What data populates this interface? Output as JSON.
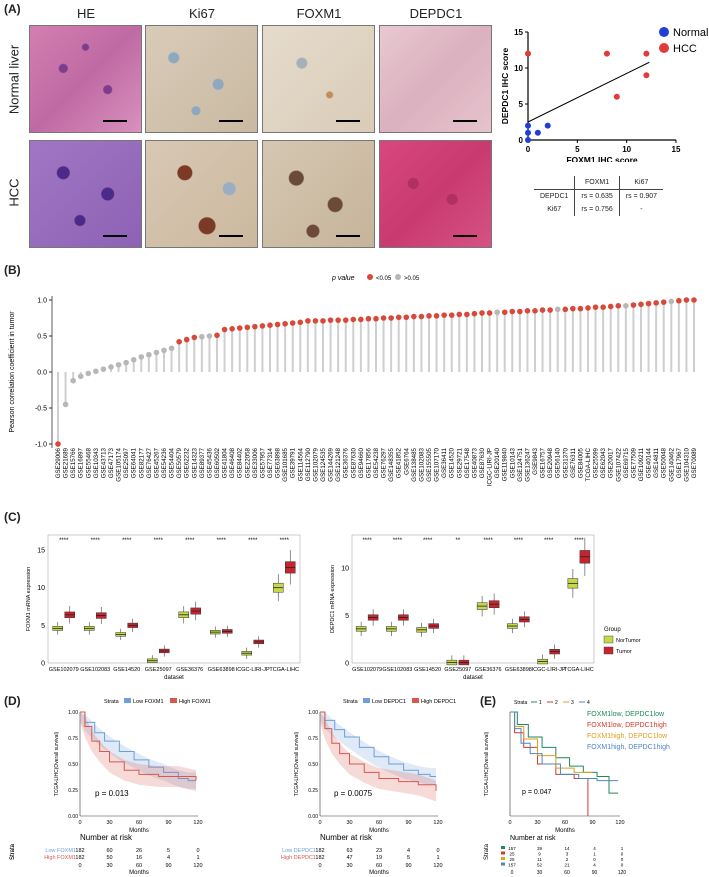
{
  "panels": {
    "A": "(A)",
    "B": "(B)",
    "C": "(C)",
    "D": "(D)",
    "E": "(E)"
  },
  "panelA": {
    "columns": [
      "HE",
      "Ki67",
      "FOXM1",
      "DEPDC1"
    ],
    "rows": [
      "Normal liver",
      "HCC"
    ],
    "scatter": {
      "xlabel": "FOXM1 IHC score",
      "ylabel": "DEPDC1 IHC score",
      "xticks": [
        "0",
        "5",
        "10",
        "15"
      ],
      "yticks": [
        "0",
        "5",
        "10",
        "15"
      ],
      "legend": [
        {
          "name": "Normal",
          "color": "#1f3fd6"
        },
        {
          "name": "HCC",
          "color": "#e23a3a"
        }
      ]
    },
    "table": {
      "header": [
        "",
        "FOXM1",
        "Ki67"
      ],
      "rows": [
        [
          "DEPDC1",
          "rs = 0.635",
          "rs = 0.907"
        ],
        [
          "Ki67",
          "rs = 0.756",
          "-"
        ]
      ]
    }
  },
  "panelB": {
    "ylabel": "Pearson correlation coefficient in tumor",
    "legend_title": "p value",
    "legend_sig": "<0.05",
    "legend_ns": ">0.05",
    "yticks": [
      "-1.0",
      "-0.5",
      "0.0",
      "0.5",
      "1.0"
    ],
    "colors": {
      "sig": "#d9493a",
      "ns": "#b7b7b7"
    },
    "datasets": [
      "GSE29006",
      "GSE21689",
      "GSE15766",
      "GSE16897",
      "GSE55468",
      "GSE10343",
      "GSE43713",
      "GSE47173",
      "GSE105174",
      "GSE25097",
      "GSE64041",
      "GSE82177",
      "GSE76427",
      "GSE45267",
      "GSE54236",
      "GSE54404",
      "GSE50579",
      "GSE62232",
      "GSE14323",
      "GSE89377",
      "GSE45436",
      "GSE60502",
      "GSE41804",
      "GSE46408",
      "GSE84402",
      "GSE22058",
      "GSE33006",
      "GSE57957",
      "GSE77314",
      "GSE63898",
      "GSE101685",
      "GSE39791",
      "GSE114564",
      "GSE112790",
      "GSE102079",
      "GSE124535",
      "GSE144269",
      "GSE121248",
      "GSE36376",
      "GSE87630",
      "GSE94660",
      "GSE17856",
      "GSE54238",
      "GSE76297",
      "GSE148355",
      "GSE41852",
      "GSE6764",
      "GSE138485",
      "GSE102083",
      "GSE155505",
      "GSE107170",
      "GSE36411",
      "GSE14520",
      "GSE29721",
      "GSE17548",
      "GSE40873",
      "GSE87630",
      "ICGC-LIRI-JP",
      "GSE20140",
      "GSE119840",
      "GSE10143",
      "GSE124751",
      "GSE136247",
      "GSE9843",
      "GSE16757",
      "GSE20948",
      "GSE56140",
      "GSE31370",
      "GSE76311",
      "GSE84005",
      "TCGA-LIHC",
      "GSE25599",
      "GSE62043",
      "GSE20017",
      "GSE107422",
      "GSE69715",
      "GSE77509",
      "GSE109211",
      "GSE40144",
      "GSE14811",
      "GSE50048",
      "GSE140462",
      "GSE17967",
      "GSE104310",
      "GSE70089"
    ],
    "values": [
      -1.0,
      -0.45,
      -0.12,
      -0.06,
      -0.02,
      0.01,
      0.04,
      0.07,
      0.1,
      0.13,
      0.17,
      0.21,
      0.24,
      0.27,
      0.3,
      0.33,
      0.42,
      0.45,
      0.48,
      0.49,
      0.5,
      0.51,
      0.59,
      0.6,
      0.61,
      0.62,
      0.63,
      0.64,
      0.65,
      0.66,
      0.67,
      0.68,
      0.69,
      0.71,
      0.71,
      0.71,
      0.72,
      0.72,
      0.72,
      0.73,
      0.73,
      0.74,
      0.74,
      0.75,
      0.75,
      0.76,
      0.76,
      0.77,
      0.77,
      0.78,
      0.78,
      0.79,
      0.79,
      0.8,
      0.8,
      0.81,
      0.82,
      0.82,
      0.83,
      0.83,
      0.84,
      0.84,
      0.85,
      0.85,
      0.86,
      0.86,
      0.87,
      0.87,
      0.88,
      0.88,
      0.89,
      0.9,
      0.9,
      0.91,
      0.92,
      0.92,
      0.93,
      0.94,
      0.95,
      0.96,
      0.97,
      0.98,
      0.99,
      1.0,
      1.0
    ],
    "significant": [
      true,
      false,
      false,
      false,
      false,
      false,
      false,
      false,
      false,
      false,
      false,
      false,
      false,
      false,
      false,
      false,
      true,
      true,
      true,
      false,
      false,
      true,
      true,
      true,
      true,
      true,
      true,
      true,
      true,
      true,
      true,
      true,
      true,
      true,
      true,
      true,
      true,
      true,
      true,
      true,
      true,
      true,
      true,
      true,
      true,
      true,
      true,
      true,
      true,
      true,
      true,
      true,
      true,
      true,
      true,
      true,
      true,
      true,
      false,
      true,
      true,
      true,
      true,
      true,
      true,
      true,
      false,
      true,
      true,
      true,
      true,
      true,
      true,
      true,
      true,
      false,
      true,
      true,
      true,
      true,
      true,
      false,
      true,
      true,
      true
    ]
  },
  "panelC": {
    "left_ylabel": "FOXM1 mRNA expression",
    "right_ylabel": "DEPDC1 mRNA expression",
    "xlabel": "dataset",
    "categories": [
      "GSE102079",
      "GSE102083",
      "GSE14520",
      "GSE25097",
      "GSE36376",
      "GSE63898",
      "ICGC-LIRI-JP",
      "TCGA-LIHC"
    ],
    "left_sig": [
      "****",
      "****",
      "****",
      "****",
      "****",
      "****",
      "****",
      "****"
    ],
    "right_sig": [
      "****",
      "****",
      "****",
      "**",
      "****",
      "****",
      "****",
      "****"
    ],
    "left_yticks": [
      "0",
      "5",
      "10",
      "15"
    ],
    "right_yticks": [
      "0",
      "5",
      "10"
    ],
    "legend_title": "Group",
    "groups": [
      {
        "name": "NorTumor",
        "color": "#c6d84a"
      },
      {
        "name": "Tumor",
        "color": "#c8242f"
      }
    ],
    "left_normal": [
      4.6,
      4.6,
      3.8,
      0.3,
      6.4,
      4.1,
      1.3,
      10.0
    ],
    "left_tumor": [
      6.4,
      6.3,
      5.0,
      1.6,
      6.9,
      4.2,
      2.8,
      12.7
    ],
    "right_normal": [
      3.6,
      3.6,
      3.5,
      0.05,
      6.0,
      3.9,
      0.15,
      8.4
    ],
    "right_tumor": [
      4.8,
      4.8,
      3.9,
      0.05,
      6.2,
      4.6,
      1.2,
      11.2
    ]
  },
  "panelD": [
    {
      "strata_label": "Strata",
      "low": "Low FOXM1",
      "high": "High FOXM1",
      "p": "p = 0.013",
      "ylabel": "TCGA-LIHC(Overall survival)",
      "xlabel": "Months",
      "risk_title": "Number at risk",
      "risk_rows": [
        [
          "Low FOXM1",
          "182",
          "60",
          "26",
          "5",
          "0"
        ],
        [
          "High FOXM1",
          "182",
          "50",
          "16",
          "4",
          "1"
        ]
      ],
      "xticks": [
        "0",
        "30",
        "60",
        "90",
        "120"
      ],
      "yticks": [
        "0.00",
        "0.25",
        "0.50",
        "0.75",
        "1.00"
      ]
    },
    {
      "strata_label": "Strata",
      "low": "Low DEPDC1",
      "high": "High DEPDC1",
      "p": "p = 0.0075",
      "ylabel": "TCGA-LIHC(Overall survival)",
      "xlabel": "Months",
      "risk_title": "Number at risk",
      "risk_rows": [
        [
          "Low DEPDC1",
          "182",
          "63",
          "23",
          "4",
          "0"
        ],
        [
          "High DEPDC1",
          "182",
          "47",
          "19",
          "5",
          "1"
        ]
      ],
      "xticks": [
        "0",
        "30",
        "60",
        "90",
        "120"
      ],
      "yticks": [
        "0.00",
        "0.25",
        "0.50",
        "0.75",
        "1.00"
      ]
    }
  ],
  "panelE": {
    "strata_label": "Strata",
    "strata": [
      "1",
      "2",
      "3",
      "4"
    ],
    "groups": [
      {
        "label": "FOXM1low, DEPDC1low",
        "color": "#1d8a5a"
      },
      {
        "label": "FOXM1low, DEPDC1high",
        "color": "#d13b2c"
      },
      {
        "label": "FOXM1high, DEPDC1low",
        "color": "#e0a020"
      },
      {
        "label": "FOXM1high, DEPDC1high",
        "color": "#4a86c8"
      }
    ],
    "p": "p = 0.047",
    "ylabel": "TCGA-LIHC(Overall survival)",
    "xlabel": "Months",
    "risk_title": "Number at risk",
    "risk_rows": [
      [
        "157",
        "39",
        "14",
        "4",
        "1"
      ],
      [
        "25",
        "9",
        "3",
        "1",
        "0"
      ],
      [
        "25",
        "11",
        "2",
        "0",
        "0"
      ],
      [
        "157",
        "52",
        "21",
        "4",
        "0"
      ]
    ],
    "xticks": [
      "0",
      "30",
      "60",
      "90",
      "120"
    ]
  },
  "labels": {
    "strata_axis": "Strata"
  }
}
